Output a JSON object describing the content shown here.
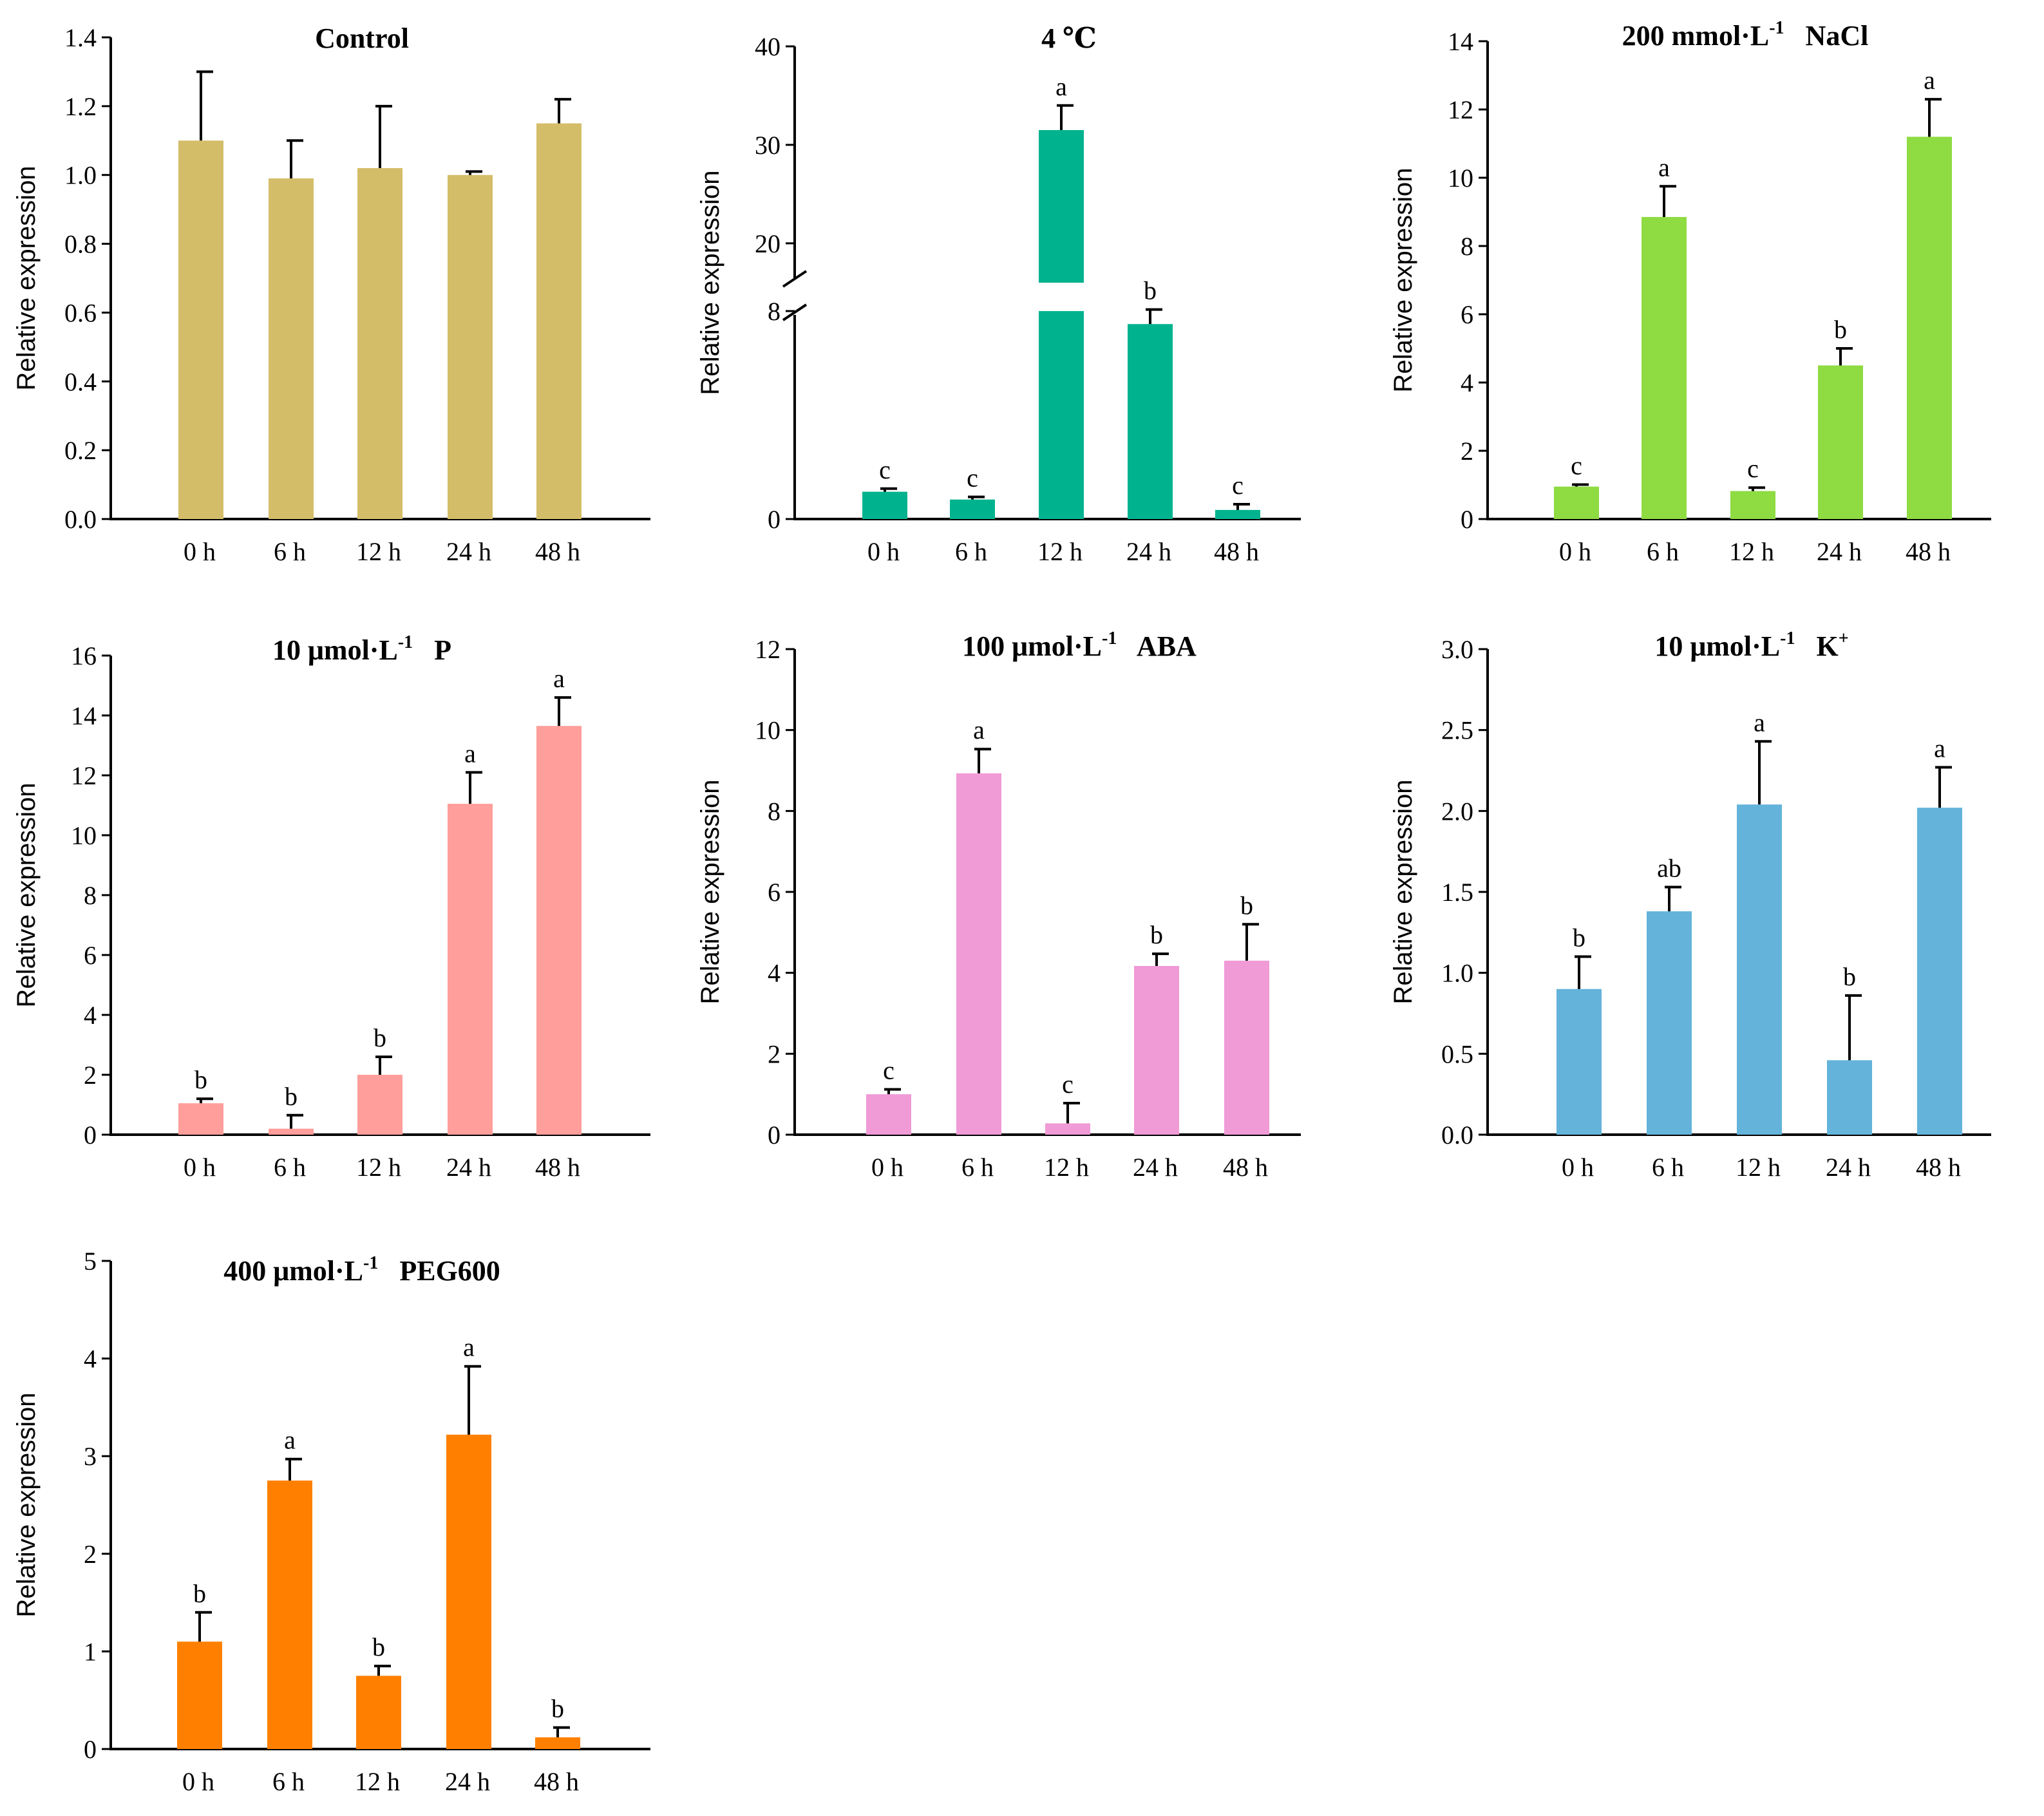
{
  "chart_data": [
    {
      "type": "bar",
      "title": "Control",
      "ylabel": "Relative expression",
      "categories": [
        "0 h",
        "6 h",
        "12 h",
        "24 h",
        "48 h"
      ],
      "values": [
        1.1,
        0.99,
        1.02,
        1.0,
        1.15
      ],
      "errors": [
        0.2,
        0.11,
        0.18,
        0.01,
        0.07
      ],
      "significance": [
        "",
        "",
        "",
        "",
        ""
      ],
      "ylim": [
        0,
        1.4
      ],
      "yticks": [
        0,
        0.2,
        0.4,
        0.6,
        0.8,
        1.0,
        1.2,
        1.4
      ],
      "ytick_labels": [
        "0.0",
        "0.2",
        "0.4",
        "0.6",
        "0.8",
        "1.0",
        "1.2",
        "1.4"
      ],
      "color": "#d4bd68"
    },
    {
      "type": "bar",
      "title": "4 ℃",
      "ylabel": "Relative expression",
      "categories": [
        "0 h",
        "6 h",
        "12 h",
        "24 h",
        "48 h"
      ],
      "values": [
        1.05,
        0.75,
        31.5,
        7.5,
        0.35
      ],
      "errors": [
        0.12,
        0.1,
        2.5,
        0.95,
        0.22
      ],
      "significance": [
        "c",
        "c",
        "a",
        "b",
        "c"
      ],
      "ylim": [
        0,
        40
      ],
      "axis_break": {
        "lower_range": [
          0,
          8
        ],
        "upper_range": [
          16,
          40
        ]
      },
      "yticks": [
        0,
        8,
        20,
        30,
        40
      ],
      "ytick_labels": [
        "0",
        "8",
        "20",
        "30",
        "40"
      ],
      "color": "#00b38e"
    },
    {
      "type": "bar",
      "title": "200 mmol·L⁻¹ NaCl",
      "ylabel": "Relative expression",
      "categories": [
        "0 h",
        "6 h",
        "12 h",
        "24 h",
        "48 h"
      ],
      "values": [
        0.95,
        8.85,
        0.82,
        4.5,
        11.2
      ],
      "errors": [
        0.06,
        0.9,
        0.1,
        0.5,
        1.1
      ],
      "significance": [
        "c",
        "a",
        "c",
        "b",
        "a"
      ],
      "ylim": [
        0,
        14
      ],
      "yticks": [
        0,
        2,
        4,
        6,
        8,
        10,
        12,
        14
      ],
      "ytick_labels": [
        "0",
        "2",
        "4",
        "6",
        "8",
        "10",
        "12",
        "14"
      ],
      "color": "#8edb42"
    },
    {
      "type": "bar",
      "title": "10 μmol·L⁻¹ P",
      "ylabel": "Relative expression",
      "categories": [
        "0 h",
        "6 h",
        "12 h",
        "24 h",
        "48 h"
      ],
      "values": [
        1.05,
        0.2,
        2.0,
        11.05,
        13.65
      ],
      "errors": [
        0.15,
        0.45,
        0.6,
        1.05,
        0.95
      ],
      "significance": [
        "b",
        "b",
        "b",
        "a",
        "a"
      ],
      "ylim": [
        0,
        16
      ],
      "yticks": [
        0,
        2,
        4,
        6,
        8,
        10,
        12,
        14,
        16
      ],
      "ytick_labels": [
        "0",
        "2",
        "4",
        "6",
        "8",
        "10",
        "12",
        "14",
        "16"
      ],
      "color": "#ff9e9b"
    },
    {
      "type": "bar",
      "title": "100 μmol·L⁻¹ ABA",
      "ylabel": "Relative expression",
      "categories": [
        "0 h",
        "6 h",
        "12 h",
        "24 h",
        "48 h"
      ],
      "values": [
        1.0,
        8.93,
        0.28,
        4.17,
        4.3
      ],
      "errors": [
        0.12,
        0.6,
        0.5,
        0.3,
        0.9
      ],
      "significance": [
        "c",
        "a",
        "c",
        "b",
        "b"
      ],
      "ylim": [
        0,
        12
      ],
      "yticks": [
        0,
        2,
        4,
        6,
        8,
        10,
        12
      ],
      "ytick_labels": [
        "0",
        "2",
        "4",
        "6",
        "8",
        "10",
        "12"
      ],
      "color": "#f09ad6"
    },
    {
      "type": "bar",
      "title": "10 μmol·L⁻¹ K⁺",
      "ylabel": "Relative expression",
      "categories": [
        "0 h",
        "6 h",
        "12 h",
        "24 h",
        "48 h"
      ],
      "values": [
        0.9,
        1.38,
        2.04,
        0.46,
        2.02
      ],
      "errors": [
        0.2,
        0.15,
        0.39,
        0.4,
        0.25
      ],
      "significance": [
        "b",
        "ab",
        "a",
        "b",
        "a"
      ],
      "ylim": [
        0,
        3.0
      ],
      "yticks": [
        0,
        0.5,
        1.0,
        1.5,
        2.0,
        2.5,
        3.0
      ],
      "ytick_labels": [
        "0.0",
        "0.5",
        "1.0",
        "1.5",
        "2.0",
        "2.5",
        "3.0"
      ],
      "color": "#63b3da"
    },
    {
      "type": "bar",
      "title": "400 μmol·L⁻¹ PEG600",
      "ylabel": "Relative expression",
      "categories": [
        "0 h",
        "6 h",
        "12 h",
        "24 h",
        "48 h"
      ],
      "values": [
        1.1,
        2.75,
        0.75,
        3.22,
        0.12
      ],
      "errors": [
        0.3,
        0.22,
        0.1,
        0.7,
        0.1
      ],
      "significance": [
        "b",
        "a",
        "b",
        "a",
        "b"
      ],
      "ylim": [
        0,
        5
      ],
      "yticks": [
        0,
        1,
        2,
        3,
        4,
        5
      ],
      "ytick_labels": [
        "0",
        "1",
        "2",
        "3",
        "4",
        "5"
      ],
      "color": "#ff8000"
    }
  ]
}
